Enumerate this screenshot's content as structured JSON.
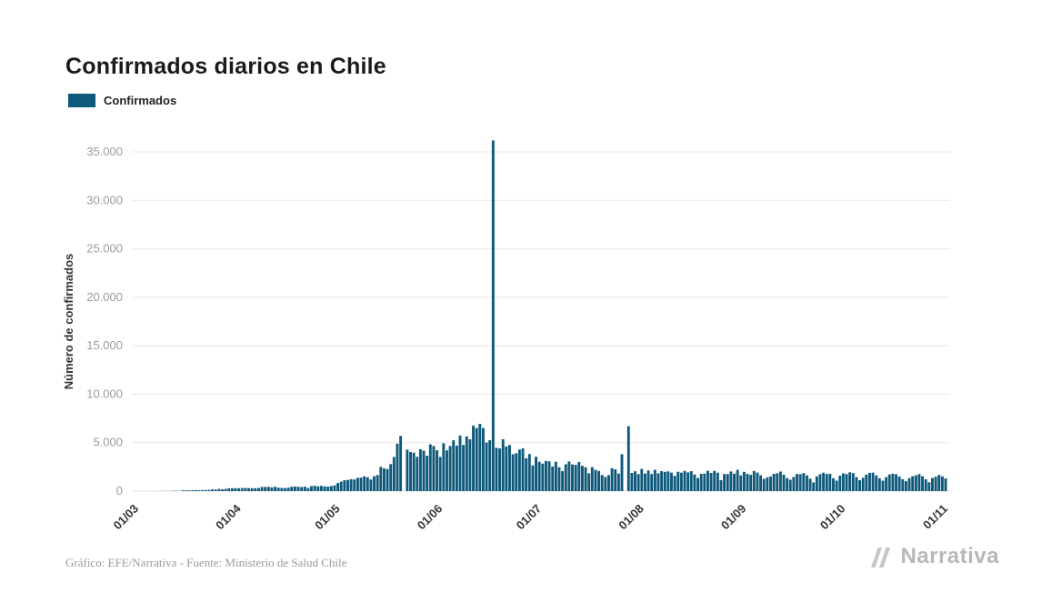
{
  "page": {
    "title": "Confirmados diarios en Chile"
  },
  "legend": {
    "label": "Confirmados"
  },
  "footer": {
    "credit": "Gráfico: EFE/Narrativa - Fuente: Ministerio de Salud Chile",
    "brand": "Narrativa"
  },
  "colors": {
    "bar": "#0e587a",
    "grid": "#e7e7e7",
    "y_tick_label": "#9b9b9b",
    "x_tick_label": "#333333",
    "axis_title": "#333333",
    "title": "#1a1a1a",
    "brand": "#b8b8b8"
  },
  "chart_data": {
    "type": "bar",
    "title": "Confirmados diarios en Chile",
    "xlabel": "",
    "ylabel": "Número de confirmados",
    "legend": [
      "Confirmados"
    ],
    "ylim": [
      0,
      37000
    ],
    "grid": "horizontal",
    "y_ticks": {
      "values": [
        0,
        5000,
        10000,
        15000,
        20000,
        25000,
        30000,
        35000
      ],
      "labels": [
        "0",
        "5.000",
        "10.000",
        "15.000",
        "20.000",
        "25.000",
        "30.000",
        "35.000"
      ]
    },
    "x_ticks": {
      "positions": [
        0,
        31,
        61,
        92,
        122,
        153,
        184,
        214,
        245
      ],
      "labels": [
        "01/03",
        "01/04",
        "01/05",
        "01/06",
        "01/07",
        "01/08",
        "01/09",
        "01/10",
        "01/11"
      ]
    },
    "series_name": "Confirmados",
    "values": [
      1,
      3,
      2,
      4,
      5,
      6,
      9,
      11,
      14,
      16,
      12,
      30,
      32,
      18,
      81,
      75,
      90,
      88,
      103,
      97,
      112,
      114,
      132,
      176,
      164,
      220,
      190,
      231,
      289,
      301,
      310,
      295,
      312,
      328,
      310,
      301,
      294,
      320,
      426,
      430,
      445,
      392,
      447,
      356,
      325,
      312,
      358,
      445,
      478,
      451,
      419,
      464,
      325,
      516,
      552,
      494,
      544,
      482,
      473,
      520,
      598,
      838,
      980,
      1123,
      1158,
      1228,
      1197,
      1373,
      1392,
      1533,
      1427,
      1197,
      1541,
      1658,
      2502,
      2353,
      2278,
      2787,
      3520,
      4895,
      5700,
      0,
      4276,
      4038,
      3964,
      3536,
      4328,
      4171,
      3649,
      4830,
      4654,
      4220,
      3527,
      4942,
      4207,
      4664,
      5246,
      4696,
      5737,
      4764,
      5647,
      5347,
      6754,
      6509,
      6938,
      6508,
      5013,
      5249,
      36179,
      4475,
      4406,
      5355,
      4608,
      4757,
      3804,
      3913,
      4296,
      4406,
      3394,
      3829,
      2650,
      3548,
      3025,
      2840,
      3114,
      3073,
      2545,
      3025,
      2462,
      2064,
      2772,
      3058,
      2755,
      2716,
      3012,
      2616,
      2461,
      1836,
      2475,
      2198,
      2084,
      1656,
      1460,
      1656,
      2371,
      2245,
      1813,
      3808,
      0,
      6702,
      1877,
      2049,
      1759,
      2293,
      1813,
      2133,
      1762,
      2198,
      1841,
      2062,
      1988,
      2033,
      1905,
      1572,
      1998,
      1906,
      2077,
      1935,
      2061,
      1720,
      1353,
      1783,
      1812,
      2099,
      1874,
      2085,
      1903,
      1135,
      1762,
      1767,
      2031,
      1797,
      2198,
      1629,
      1985,
      1775,
      1684,
      2077,
      1916,
      1637,
      1266,
      1419,
      1514,
      1785,
      1835,
      2018,
      1694,
      1343,
      1177,
      1456,
      1772,
      1751,
      1856,
      1626,
      1287,
      898,
      1522,
      1752,
      1906,
      1771,
      1786,
      1325,
      1081,
      1597,
      1833,
      1754,
      1942,
      1863,
      1445,
      1122,
      1374,
      1706,
      1886,
      1907,
      1617,
      1327,
      1076,
      1442,
      1712,
      1799,
      1737,
      1502,
      1232,
      1027,
      1353,
      1538,
      1639,
      1758,
      1541,
      1227,
      913,
      1358,
      1484,
      1666,
      1525,
      1307
    ]
  }
}
